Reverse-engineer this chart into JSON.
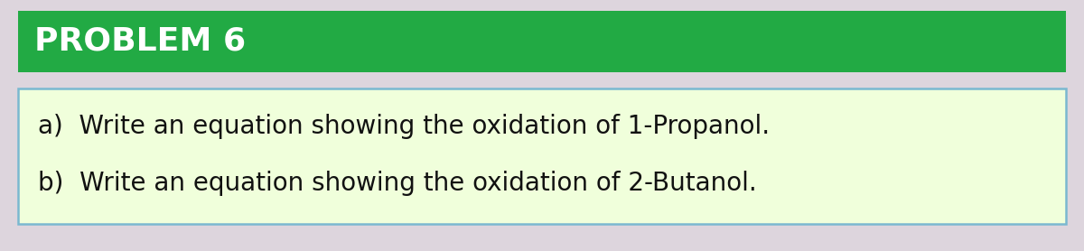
{
  "title": "PROBLEM 6",
  "title_bg_color": "#22aa44",
  "title_text_color": "#ffffff",
  "title_fontsize": 26,
  "body_bg_color": "#f0ffdb",
  "body_border_color": "#7ab8d0",
  "outer_bg_color": "#ddd5dd",
  "line_a": "a)  Write an equation showing the oxidation of 1-Propanol.",
  "line_b": "b)  Write an equation showing the oxidation of 2-Butanol.",
  "body_fontsize": 20,
  "body_text_color": "#111111",
  "figsize": [
    12.0,
    2.78
  ],
  "dpi": 100
}
